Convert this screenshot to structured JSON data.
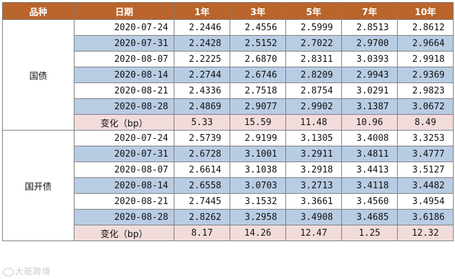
{
  "headers": [
    "品种",
    "日期",
    "1年",
    "3年",
    "5年",
    "7年",
    "10年"
  ],
  "groups": [
    {
      "name": "国债",
      "rows": [
        {
          "date": "2020-07-24",
          "v": [
            "2.2446",
            "2.4556",
            "2.5999",
            "2.8513",
            "2.8612"
          ]
        },
        {
          "date": "2020-07-31",
          "v": [
            "2.2428",
            "2.5152",
            "2.7022",
            "2.9700",
            "2.9664"
          ]
        },
        {
          "date": "2020-08-07",
          "v": [
            "2.2225",
            "2.6870",
            "2.8311",
            "3.0393",
            "2.9918"
          ]
        },
        {
          "date": "2020-08-14",
          "v": [
            "2.2744",
            "2.6746",
            "2.8209",
            "2.9943",
            "2.9369"
          ]
        },
        {
          "date": "2020-08-21",
          "v": [
            "2.4336",
            "2.7518",
            "2.8754",
            "3.0291",
            "2.9823"
          ]
        },
        {
          "date": "2020-08-28",
          "v": [
            "2.4869",
            "2.9077",
            "2.9902",
            "3.1387",
            "3.0672"
          ]
        }
      ],
      "change_label": "变化（bp）",
      "change": [
        "5.33",
        "15.59",
        "11.48",
        "10.96",
        "8.49"
      ]
    },
    {
      "name": "国开债",
      "rows": [
        {
          "date": "2020-07-24",
          "v": [
            "2.5739",
            "2.9199",
            "3.1305",
            "3.4008",
            "3.3253"
          ]
        },
        {
          "date": "2020-07-31",
          "v": [
            "2.6728",
            "3.1001",
            "3.2911",
            "3.4811",
            "3.4777"
          ]
        },
        {
          "date": "2020-08-07",
          "v": [
            "2.6614",
            "3.1038",
            "3.2918",
            "3.4413",
            "3.5127"
          ]
        },
        {
          "date": "2020-08-14",
          "v": [
            "2.6558",
            "3.0703",
            "3.2713",
            "3.4118",
            "3.4482"
          ]
        },
        {
          "date": "2020-08-21",
          "v": [
            "2.7445",
            "3.1532",
            "3.3661",
            "3.4560",
            "3.4954"
          ]
        },
        {
          "date": "2020-08-28",
          "v": [
            "2.8262",
            "3.2958",
            "3.4908",
            "3.4685",
            "3.6186"
          ]
        }
      ],
      "change_label": "变化（bp）",
      "change": [
        "8.17",
        "14.26",
        "12.47",
        "1.25",
        "12.32"
      ]
    }
  ],
  "watermark": "大砥跨境"
}
